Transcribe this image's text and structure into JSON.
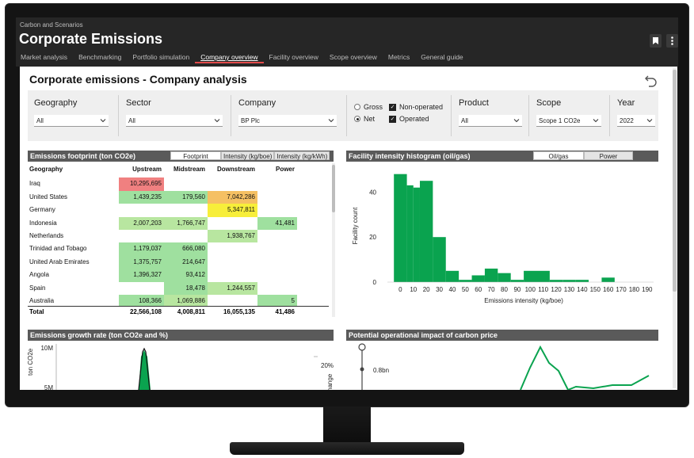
{
  "app": {
    "breadcrumb": "Carbon and Scenarios",
    "title": "Corporate Emissions",
    "tabs": [
      {
        "label": "Market analysis",
        "active": false
      },
      {
        "label": "Benchmarking",
        "active": false
      },
      {
        "label": "Portfolio simulation",
        "active": false
      },
      {
        "label": "Company overview",
        "active": true
      },
      {
        "label": "Facility overview",
        "active": false
      },
      {
        "label": "Scope overview",
        "active": false
      },
      {
        "label": "Metrics",
        "active": false
      },
      {
        "label": "General guide",
        "active": false
      }
    ]
  },
  "report": {
    "title": "Corporate emissions - Company analysis"
  },
  "filters": {
    "geography": {
      "label": "Geography",
      "value": "All"
    },
    "sector": {
      "label": "Sector",
      "value": "All"
    },
    "company": {
      "label": "Company",
      "value": "BP Plc"
    },
    "basis": {
      "gross": "Gross",
      "net": "Net",
      "selected": "Net"
    },
    "ops": {
      "non_operated": "Non-operated",
      "operated": "Operated"
    },
    "product": {
      "label": "Product",
      "value": "All"
    },
    "scope": {
      "label": "Scope",
      "value": "Scope 1 CO2e"
    },
    "year": {
      "label": "Year",
      "value": "2022"
    }
  },
  "footprint": {
    "title": "Emissions footprint (ton CO2e)",
    "toggles": [
      "Footprint",
      "Intensity (kg/boe)",
      "Intensity (kg/kWh)"
    ],
    "columns": [
      "Geography",
      "Upstream",
      "Midstream",
      "Downstream",
      "Power"
    ],
    "rows": [
      {
        "geo": "Iraq",
        "up": "10,295,695",
        "mid": "",
        "down": "",
        "pow": "",
        "c": [
          "#f08080",
          "",
          "",
          ""
        ]
      },
      {
        "geo": "United States",
        "up": "1,439,235",
        "mid": "179,560",
        "down": "7,042,286",
        "pow": "",
        "c": [
          "#9fe09f",
          "#9fe09f",
          "#f5c063",
          ""
        ]
      },
      {
        "geo": "Germany",
        "up": "",
        "mid": "",
        "down": "5,347,811",
        "pow": "",
        "c": [
          "",
          "",
          "#f7ee3a",
          ""
        ]
      },
      {
        "geo": "Indonesia",
        "up": "2,007,203",
        "mid": "1,766,747",
        "down": "",
        "pow": "41,481",
        "c": [
          "#b8e6a0",
          "#b8e6a0",
          "",
          "#9fe09f"
        ]
      },
      {
        "geo": "Netherlands",
        "up": "",
        "mid": "",
        "down": "1,938,767",
        "pow": "",
        "c": [
          "",
          "",
          "#b8e6a0",
          ""
        ]
      },
      {
        "geo": "Trinidad and Tobago",
        "up": "1,179,037",
        "mid": "666,080",
        "down": "",
        "pow": "",
        "c": [
          "#9fe09f",
          "#9fe09f",
          "",
          ""
        ]
      },
      {
        "geo": "United Arab Emirates",
        "up": "1,375,757",
        "mid": "214,647",
        "down": "",
        "pow": "",
        "c": [
          "#9fe09f",
          "#9fe09f",
          "",
          ""
        ]
      },
      {
        "geo": "Angola",
        "up": "1,396,327",
        "mid": "93,412",
        "down": "",
        "pow": "",
        "c": [
          "#9fe09f",
          "#9fe09f",
          "",
          ""
        ]
      },
      {
        "geo": "Spain",
        "up": "",
        "mid": "18,478",
        "down": "1,244,557",
        "pow": "",
        "c": [
          "",
          "#9fe09f",
          "#b8e6a0",
          ""
        ]
      },
      {
        "geo": "Australia",
        "up": "108,366",
        "mid": "1,069,886",
        "down": "",
        "pow": "5",
        "c": [
          "#9fe09f",
          "#b8e6a0",
          "",
          "#9fe09f"
        ]
      }
    ],
    "total": {
      "label": "Total",
      "up": "22,566,108",
      "mid": "4,008,811",
      "down": "16,055,135",
      "pow": "41,486"
    }
  },
  "histogram": {
    "title": "Facility intensity histogram (oil/gas)",
    "toggles": [
      "Oil/gas",
      "Power"
    ]
  },
  "growth": {
    "title": "Emissions growth rate (ton CO2e and %)",
    "y_ticks": [
      "10M",
      "5M"
    ],
    "y2_ticks": [
      "20%"
    ],
    "ylabel": "ton CO2e",
    "y2label": "hange"
  },
  "carbon": {
    "title": "Potential operational impact of carbon price",
    "y_ticks": [
      "0.8bn"
    ]
  },
  "chart_data": [
    {
      "type": "bar",
      "title": "Facility intensity histogram (oil/gas)",
      "xlabel": "Emissions intensity (kg/boe)",
      "ylabel": "Facility count",
      "x_ticks": [
        0,
        10,
        20,
        30,
        40,
        50,
        60,
        70,
        80,
        90,
        100,
        110,
        120,
        130,
        140,
        150,
        160,
        170,
        180,
        190
      ],
      "bins": [
        [
          -5,
          5,
          48
        ],
        [
          5,
          10,
          43
        ],
        [
          10,
          15,
          42
        ],
        [
          15,
          25,
          45
        ],
        [
          25,
          35,
          20
        ],
        [
          35,
          45,
          5
        ],
        [
          45,
          55,
          1
        ],
        [
          55,
          65,
          3
        ],
        [
          65,
          75,
          6
        ],
        [
          75,
          85,
          4
        ],
        [
          85,
          95,
          1
        ],
        [
          95,
          115,
          5
        ],
        [
          115,
          125,
          1
        ],
        [
          125,
          135,
          1
        ],
        [
          135,
          145,
          1
        ],
        [
          145,
          155,
          0
        ],
        [
          155,
          165,
          2
        ],
        [
          165,
          175,
          0
        ]
      ],
      "y_ticks": [
        0,
        20,
        40
      ],
      "ylim": [
        0,
        50
      ],
      "xlim": [
        -10,
        195
      ],
      "color": "#0aa34f"
    },
    {
      "type": "line",
      "title": "Emissions growth rate (ton CO2e and %)",
      "color": "#0aa34f"
    },
    {
      "type": "line",
      "title": "Potential operational impact of carbon price",
      "color": "#0aa34f"
    }
  ]
}
